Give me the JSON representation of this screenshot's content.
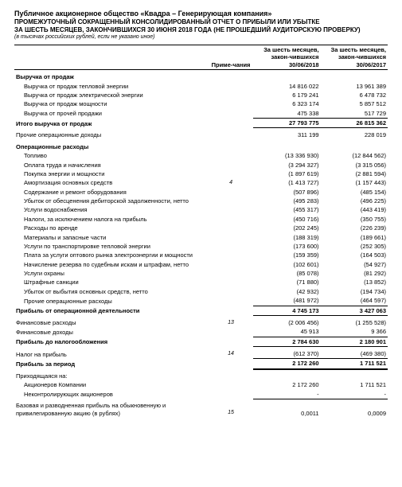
{
  "header": {
    "company": "Публичное акционерное общество «Квадра – Генерирующая компания»",
    "report_line1": "ПРОМЕЖУТОЧНЫЙ СОКРАЩЕННЫЙ КОНСОЛИДИРОВАННЫЙ ОТЧЕТ О ПРИБЫЛИ ИЛИ УБЫТКЕ",
    "report_line2": "ЗА ШЕСТЬ МЕСЯЦЕВ, ЗАКОНЧИВШИХСЯ 30 ИЮНЯ 2018 ГОДА (НЕ ПРОШЕДШИЙ АУДИТОРСКУЮ ПРОВЕРКУ)",
    "units": "(в тысячах российских рублей, если не указано иное)"
  },
  "columns": {
    "note": "Приме-чания",
    "period1": "За шесть месяцев, закон-чившихся 30/06/2018",
    "period2": "За шесть месяцев, закон-чившихся 30/06/2017"
  },
  "sections": {
    "revenue_title": "Выручка от продаж",
    "revenue_items": [
      {
        "label": "Выручка от продаж тепловой энергии",
        "v1": "14 816 022",
        "v2": "13 961 389"
      },
      {
        "label": "Выручка от продаж электрической энергии",
        "v1": "6 179 241",
        "v2": "6 478 732"
      },
      {
        "label": "Выручка от продаж мощности",
        "v1": "6 323 174",
        "v2": "5 857 512"
      },
      {
        "label": "Выручка от прочей продажи",
        "v1": "475 338",
        "v2": "517 729"
      }
    ],
    "revenue_total": {
      "label": "Итого выручка от продаж",
      "v1": "27 793 775",
      "v2": "26 815 362"
    },
    "other_income": {
      "label": "Прочие операционные доходы",
      "v1": "311 199",
      "v2": "228 019"
    },
    "opex_title": "Операционные расходы",
    "opex_items": [
      {
        "label": "Топливо",
        "v1": "(13 336 930)",
        "v2": "(12 844 562)"
      },
      {
        "label": "Оплата труда и начисления",
        "v1": "(3 294 327)",
        "v2": "(3 315 056)"
      },
      {
        "label": "Покупка энергии и мощности",
        "v1": "(1 897 619)",
        "v2": "(2 881 594)"
      },
      {
        "label": "Амортизация основных средств",
        "note": "4",
        "v1": "(1 413 727)",
        "v2": "(1 157 443)"
      },
      {
        "label": "Содержание и ремонт оборудования",
        "v1": "(507 896)",
        "v2": "(485 154)"
      },
      {
        "label": "Убыток от обесценения дебиторской задолженности, нетто",
        "v1": "(495 283)",
        "v2": "(496 225)"
      },
      {
        "label": "Услуги водоснабжения",
        "v1": "(455 317)",
        "v2": "(443 419)"
      },
      {
        "label": "Налоги, за исключением налога на прибыль",
        "v1": "(450 716)",
        "v2": "(350 755)"
      },
      {
        "label": "Расходы по аренде",
        "v1": "(202 245)",
        "v2": "(226 239)"
      },
      {
        "label": "Материалы и запасные части",
        "v1": "(188 319)",
        "v2": "(189 661)"
      },
      {
        "label": "Услуги по транспортировке тепловой энергии",
        "v1": "(173 600)",
        "v2": "(252 305)"
      },
      {
        "label": "Плата за услуги оптового рынка электроэнергии и мощности",
        "v1": "(159 359)",
        "v2": "(164 503)"
      },
      {
        "label": "Начисление резерва по судебным искам и штрафам, нетто",
        "v1": "(102 601)",
        "v2": "(54 927)"
      },
      {
        "label": "Услуги охраны",
        "v1": "(85 078)",
        "v2": "(81 292)"
      },
      {
        "label": "Штрафные санкции",
        "v1": "(71 880)",
        "v2": "(13 852)"
      },
      {
        "label": "Убыток от выбытия основных средств, нетто",
        "v1": "(42 932)",
        "v2": "(194 734)"
      },
      {
        "label": "Прочие операционные расходы",
        "v1": "(481 972)",
        "v2": "(464 597)"
      }
    ],
    "op_profit": {
      "label": "Прибыль от операционной деятельности",
      "v1": "4 745 173",
      "v2": "3 427 063"
    },
    "fin_expense": {
      "label": "Финансовые расходы",
      "note": "13",
      "v1": "(2 006 456)",
      "v2": "(1 255 528)"
    },
    "fin_income": {
      "label": "Финансовые доходы",
      "v1": "45 913",
      "v2": "9 366"
    },
    "pretax": {
      "label": "Прибыль до налогообложения",
      "v1": "2 784 630",
      "v2": "2 180 901"
    },
    "tax": {
      "label": "Налог на прибыль",
      "note": "14",
      "v1": "(612 370)",
      "v2": "(469 380)"
    },
    "period_profit": {
      "label": "Прибыль за период",
      "v1": "2 172 260",
      "v2": "1 711 521"
    },
    "attrib_title": "Приходящаяся на:",
    "attrib_items": [
      {
        "label": "Акционеров Компании",
        "v1": "2 172 260",
        "v2": "1 711 521"
      },
      {
        "label": "Неконтролирующих акционеров",
        "v1": "-",
        "v2": "-"
      }
    ],
    "eps": {
      "label": "Базовая и разводненная прибыль на обыкновенную и привилегированную акцию (в рублях)",
      "note": "15",
      "v1": "0,0011",
      "v2": "0,0009"
    }
  }
}
